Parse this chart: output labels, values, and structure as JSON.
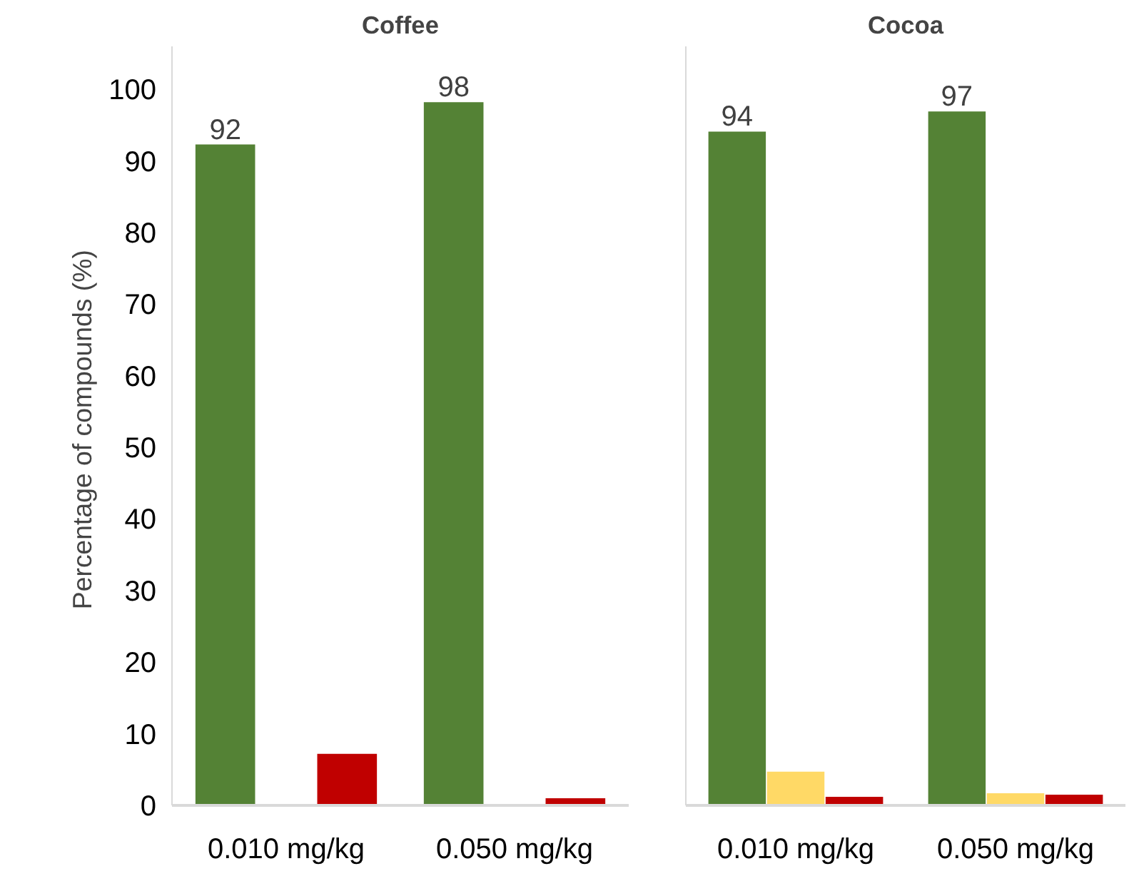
{
  "chart_data": [
    {
      "type": "bar",
      "title": "Coffee",
      "ylabel": "Percentage of compounds  (%)",
      "categories": [
        "0.010 mg/kg",
        "0.050 mg/kg"
      ],
      "ylim": [
        0,
        106
      ],
      "yticks": [
        0,
        10,
        20,
        30,
        40,
        50,
        60,
        70,
        80,
        90,
        100
      ],
      "grid": false,
      "series": [
        {
          "color": "#548235",
          "values": [
            92.3,
            98.2
          ],
          "value_labels": [
            "92",
            "98"
          ]
        },
        {
          "color": "#ffd966",
          "values": [
            0,
            0
          ]
        },
        {
          "color": "#c00000",
          "values": [
            7.2,
            1.0
          ]
        }
      ]
    },
    {
      "type": "bar",
      "title": "Cocoa",
      "categories": [
        "0.010 mg/kg",
        "0.050 mg/kg"
      ],
      "ylim": [
        0,
        106
      ],
      "yticks": [
        0,
        10,
        20,
        30,
        40,
        50,
        60,
        70,
        80,
        90,
        100
      ],
      "grid": false,
      "tick_labels": "x",
      "series": [
        {
          "color": "#548235",
          "values": [
            94.1,
            96.9
          ],
          "value_labels": [
            "94",
            "97"
          ]
        },
        {
          "color": "#ffd966",
          "values": [
            4.7,
            1.7
          ]
        },
        {
          "color": "#c00000",
          "values": [
            1.2,
            1.5
          ]
        }
      ]
    }
  ]
}
